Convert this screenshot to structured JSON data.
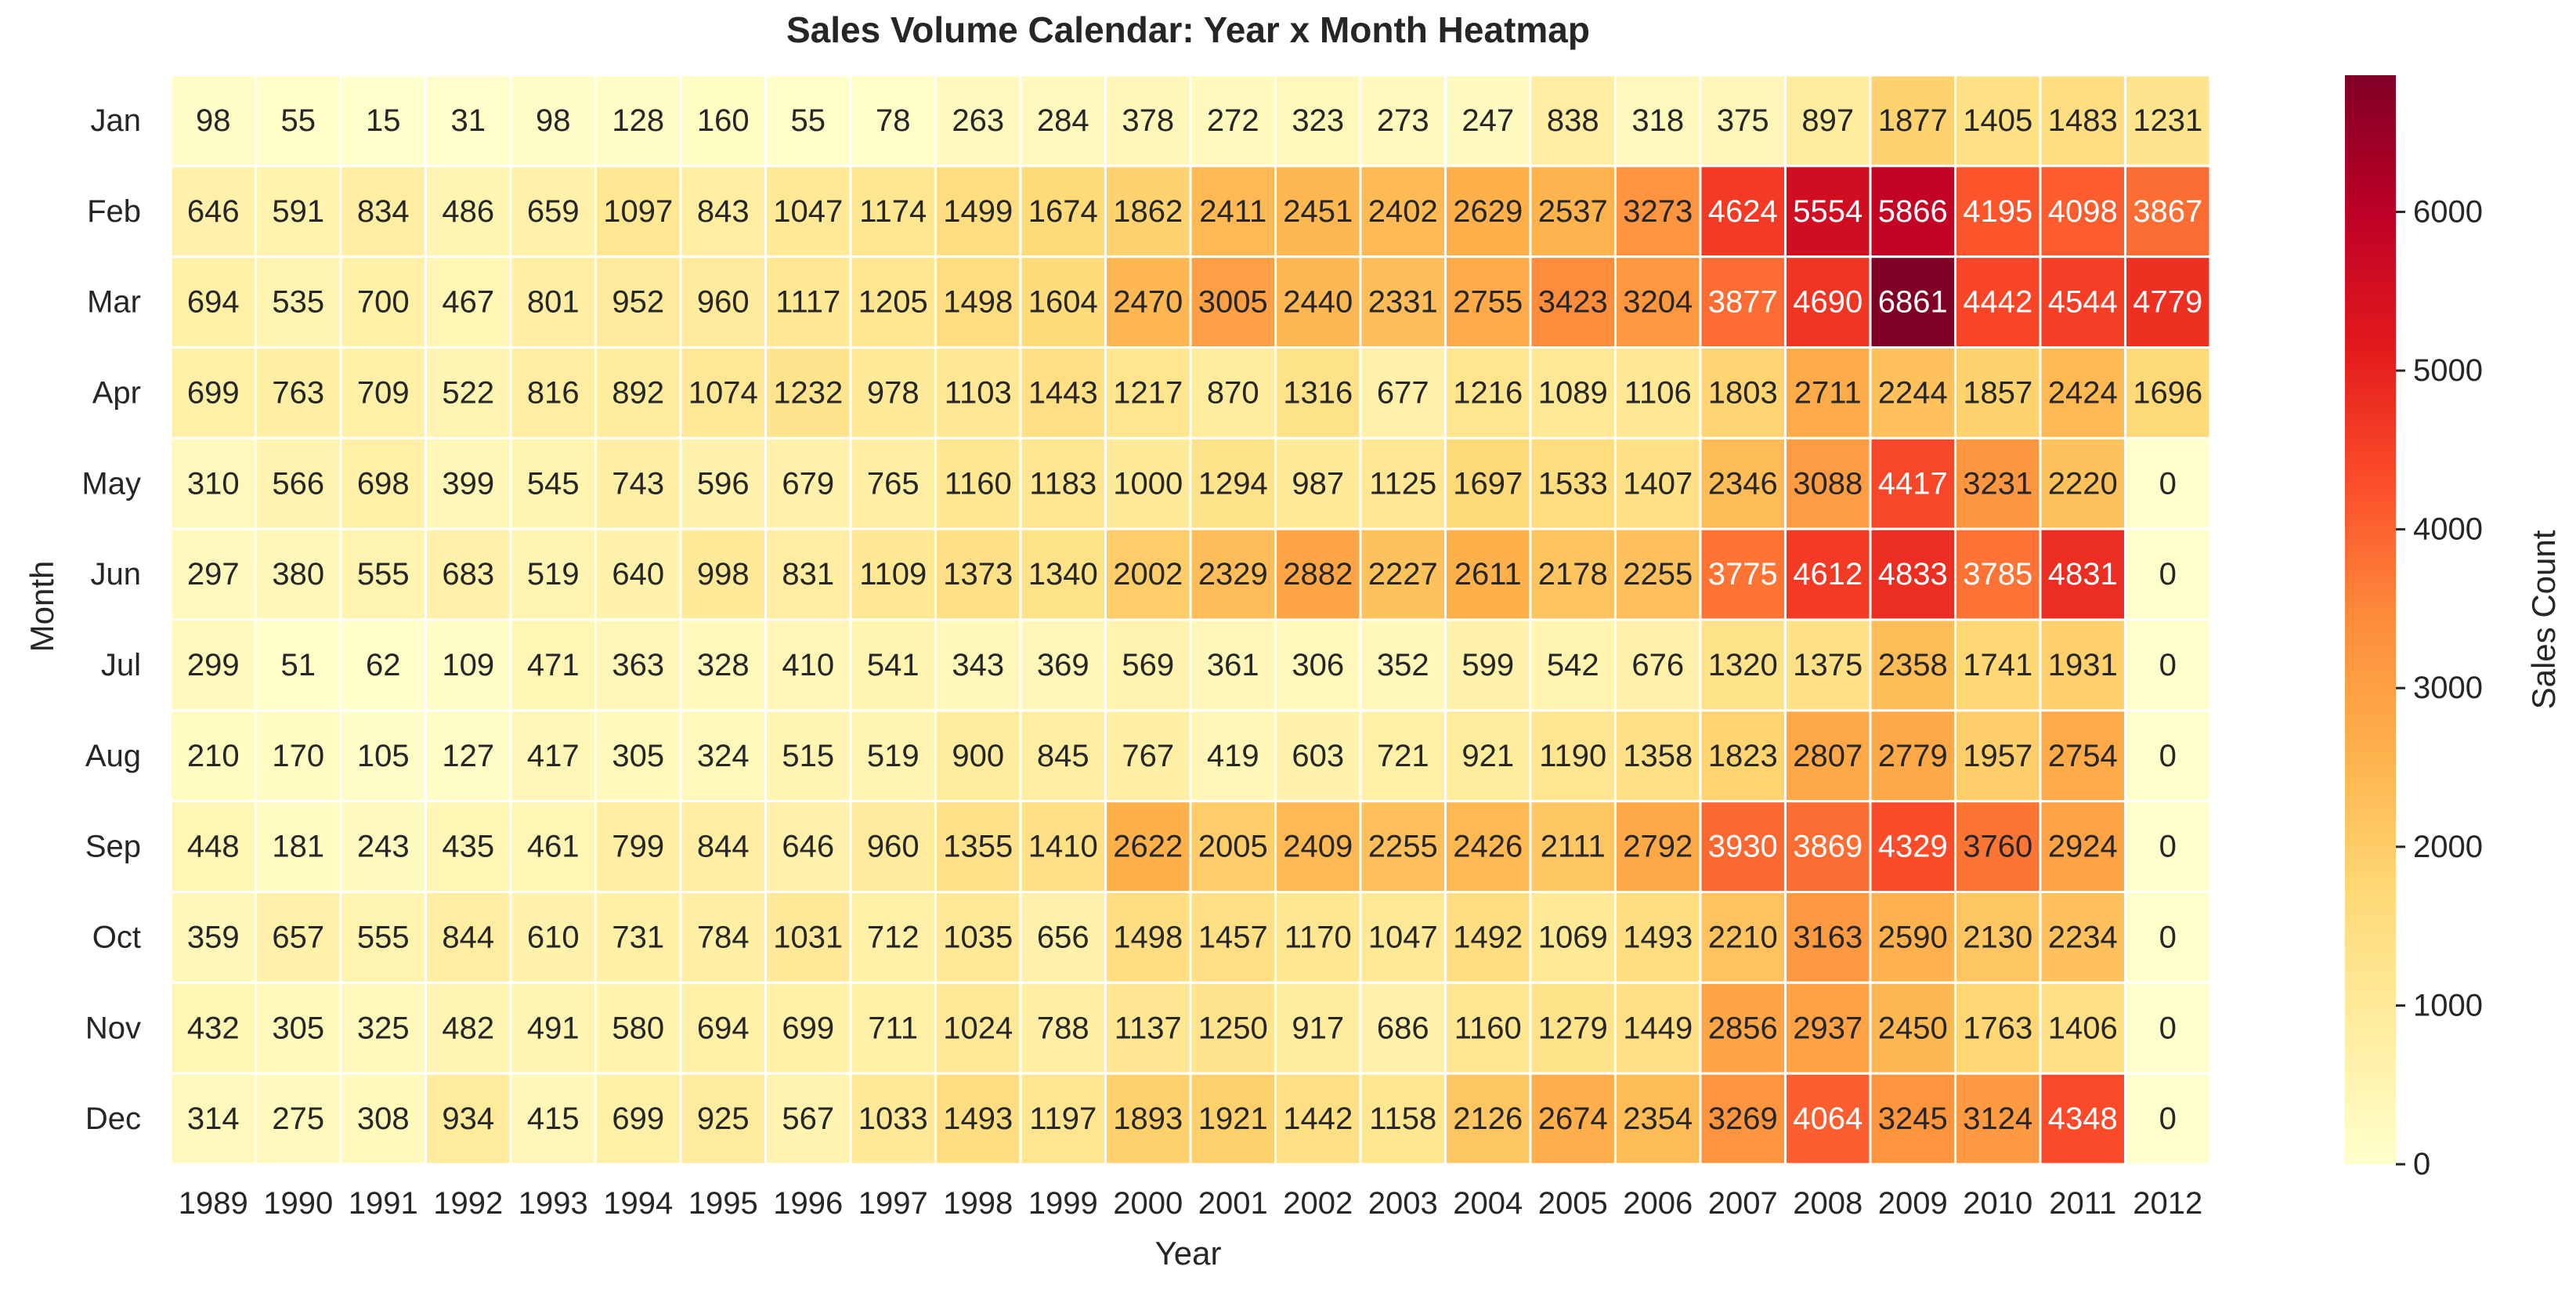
{
  "chart_data": {
    "type": "heatmap",
    "title": "Sales Volume Calendar: Year x Month Heatmap",
    "xlabel": "Year",
    "ylabel": "Month",
    "colorbar_label": "Sales Count",
    "colormap": "YlOrRd",
    "color_range": [
      0,
      6861
    ],
    "colorbar_ticks": [
      "0",
      "1000",
      "2000",
      "3000",
      "4000",
      "5000",
      "6000"
    ],
    "x": [
      "1989",
      "1990",
      "1991",
      "1992",
      "1993",
      "1994",
      "1995",
      "1996",
      "1997",
      "1998",
      "1999",
      "2000",
      "2001",
      "2002",
      "2003",
      "2004",
      "2005",
      "2006",
      "2007",
      "2008",
      "2009",
      "2010",
      "2011",
      "2012"
    ],
    "y": [
      "Jan",
      "Feb",
      "Mar",
      "Apr",
      "May",
      "Jun",
      "Jul",
      "Aug",
      "Sep",
      "Oct",
      "Nov",
      "Dec"
    ],
    "values": [
      [
        98,
        55,
        15,
        31,
        98,
        128,
        160,
        55,
        78,
        263,
        284,
        378,
        272,
        323,
        273,
        247,
        838,
        318,
        375,
        897,
        1877,
        1405,
        1483,
        1231
      ],
      [
        646,
        591,
        834,
        486,
        659,
        1097,
        843,
        1047,
        1174,
        1499,
        1674,
        1862,
        2411,
        2451,
        2402,
        2629,
        2537,
        3273,
        4624,
        5554,
        5866,
        4195,
        4098,
        3867
      ],
      [
        694,
        535,
        700,
        467,
        801,
        952,
        960,
        1117,
        1205,
        1498,
        1604,
        2470,
        3005,
        2440,
        2331,
        2755,
        3423,
        3204,
        3877,
        4690,
        6861,
        4442,
        4544,
        4779
      ],
      [
        699,
        763,
        709,
        522,
        816,
        892,
        1074,
        1232,
        978,
        1103,
        1443,
        1217,
        870,
        1316,
        677,
        1216,
        1089,
        1106,
        1803,
        2711,
        2244,
        1857,
        2424,
        1696
      ],
      [
        310,
        566,
        698,
        399,
        545,
        743,
        596,
        679,
        765,
        1160,
        1183,
        1000,
        1294,
        987,
        1125,
        1697,
        1533,
        1407,
        2346,
        3088,
        4417,
        3231,
        2220,
        0
      ],
      [
        297,
        380,
        555,
        683,
        519,
        640,
        998,
        831,
        1109,
        1373,
        1340,
        2002,
        2329,
        2882,
        2227,
        2611,
        2178,
        2255,
        3775,
        4612,
        4833,
        3785,
        4831,
        0
      ],
      [
        299,
        51,
        62,
        109,
        471,
        363,
        328,
        410,
        541,
        343,
        369,
        569,
        361,
        306,
        352,
        599,
        542,
        676,
        1320,
        1375,
        2358,
        1741,
        1931,
        0
      ],
      [
        210,
        170,
        105,
        127,
        417,
        305,
        324,
        515,
        519,
        900,
        845,
        767,
        419,
        603,
        721,
        921,
        1190,
        1358,
        1823,
        2807,
        2779,
        1957,
        2754,
        0
      ],
      [
        448,
        181,
        243,
        435,
        461,
        799,
        844,
        646,
        960,
        1355,
        1410,
        2622,
        2005,
        2409,
        2255,
        2426,
        2111,
        2792,
        3930,
        3869,
        4329,
        3760,
        2924,
        0
      ],
      [
        359,
        657,
        555,
        844,
        610,
        731,
        784,
        1031,
        712,
        1035,
        656,
        1498,
        1457,
        1170,
        1047,
        1492,
        1069,
        1493,
        2210,
        3163,
        2590,
        2130,
        2234,
        0
      ],
      [
        432,
        305,
        325,
        482,
        491,
        580,
        694,
        699,
        711,
        1024,
        788,
        1137,
        1250,
        917,
        686,
        1160,
        1279,
        1449,
        2856,
        2937,
        2450,
        1763,
        1406,
        0
      ],
      [
        314,
        275,
        308,
        934,
        415,
        699,
        925,
        567,
        1033,
        1493,
        1197,
        1893,
        1921,
        1442,
        1158,
        2126,
        2674,
        2354,
        3269,
        4064,
        3245,
        3124,
        4348,
        0
      ]
    ],
    "grid": false,
    "legend": "colorbar-right"
  }
}
